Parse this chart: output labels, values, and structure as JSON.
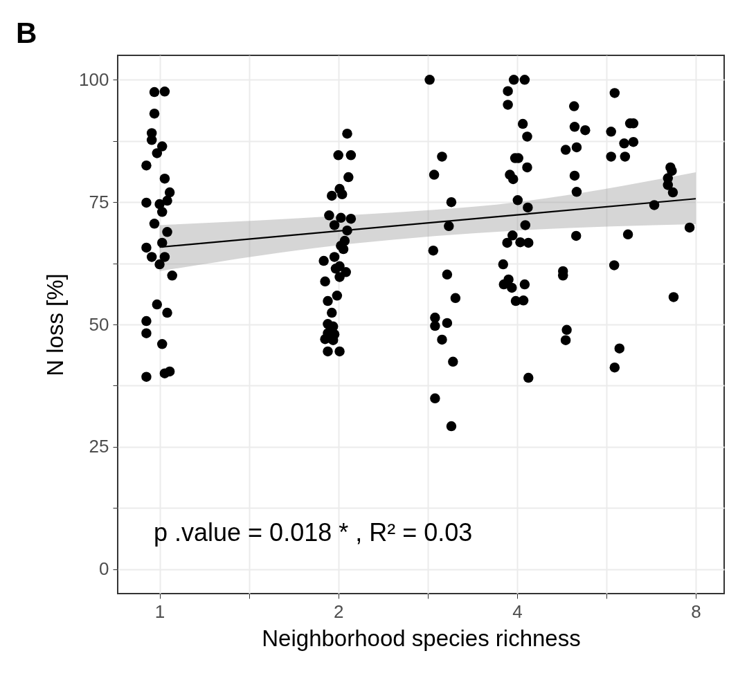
{
  "chart_data": {
    "type": "scatter",
    "title": "B",
    "xlabel": "Neighborhood species richness",
    "ylabel": "N loss [%]",
    "log": "x",
    "xlim": [
      0.85,
      8.93
    ],
    "ylim": [
      -5,
      105
    ],
    "xticks": [
      1,
      {
        "value": 1.414,
        "label": null
      },
      2,
      {
        "value": 2.828,
        "label": null
      },
      4,
      {
        "value": 5.657,
        "label": null
      },
      8
    ],
    "yticks": [
      0,
      {
        "value": 12.5,
        "label": null
      },
      25,
      {
        "value": 37.5,
        "label": null
      },
      50,
      {
        "value": 62.5,
        "label": null
      },
      75,
      {
        "value": 87.5,
        "label": null
      },
      100
    ],
    "grid": true,
    "annotations": [
      "p .value  = 0.018 * , R² = 0.03"
    ],
    "series": [
      {
        "marker": "circle",
        "color": "#000000",
        "x": [
          0.98,
          1.02,
          0.98,
          0.97,
          0.97,
          1.01,
          0.99,
          0.95,
          1.02,
          1.04,
          0.95,
          1.03,
          1.0,
          1.01,
          0.98,
          1.03,
          1.01,
          0.95,
          0.97,
          1.02,
          1.0,
          1.05,
          0.99,
          1.03,
          0.95,
          0.95,
          1.01,
          0.95,
          1.02,
          1.04,
          2.07,
          2.0,
          2.1,
          2.08,
          2.01,
          2.03,
          1.95,
          1.93,
          2.02,
          2.1,
          1.97,
          2.07,
          2.05,
          2.02,
          2.04,
          1.97,
          1.89,
          2.01,
          1.98,
          2.06,
          2.01,
          1.9,
          1.99,
          1.92,
          1.95,
          1.92,
          1.96,
          1.92,
          1.97,
          1.9,
          1.96,
          1.92,
          2.01,
          2.85,
          2.99,
          2.9,
          3.1,
          3.07,
          2.89,
          3.05,
          3.15,
          2.91,
          2.91,
          3.05,
          2.99,
          3.12,
          2.91,
          3.1,
          3.95,
          4.12,
          3.86,
          3.86,
          4.09,
          4.16,
          3.97,
          4.02,
          4.16,
          3.89,
          3.94,
          4.01,
          4.17,
          4.13,
          3.93,
          3.85,
          4.05,
          4.18,
          3.79,
          3.87,
          3.8,
          3.92,
          4.12,
          3.98,
          4.1,
          4.18,
          4.99,
          5.0,
          5.21,
          4.83,
          5.04,
          5.0,
          5.04,
          5.03,
          4.78,
          4.78,
          4.85,
          4.83,
          5.84,
          5.76,
          6.2,
          6.28,
          6.06,
          6.28,
          5.76,
          6.08,
          6.15,
          5.83,
          5.95,
          5.84,
          7.25,
          7.29,
          7.18,
          7.18,
          7.32,
          6.81,
          7.81,
          7.34
        ],
        "values": [
          97.5,
          97.6,
          93.1,
          89.1,
          87.7,
          86.4,
          85.0,
          82.5,
          79.8,
          77.0,
          74.9,
          75.3,
          74.6,
          73.0,
          70.6,
          68.9,
          66.7,
          65.7,
          63.8,
          63.8,
          62.3,
          60.0,
          54.1,
          52.4,
          50.7,
          48.2,
          46.0,
          39.3,
          40.0,
          40.4,
          89.0,
          84.6,
          84.6,
          80.1,
          77.7,
          76.6,
          76.3,
          72.3,
          71.8,
          71.6,
          70.3,
          69.2,
          67.1,
          66.1,
          65.4,
          63.8,
          63.0,
          61.9,
          61.4,
          60.7,
          59.7,
          58.8,
          55.9,
          54.8,
          52.4,
          50.1,
          49.6,
          48.2,
          48.0,
          47.0,
          46.8,
          44.5,
          44.5,
          100.0,
          84.3,
          80.6,
          75.0,
          70.1,
          65.1,
          60.2,
          55.4,
          51.4,
          49.7,
          50.3,
          46.9,
          42.4,
          34.9,
          29.2,
          100.0,
          100.0,
          97.7,
          94.9,
          91.0,
          88.4,
          84.0,
          84.0,
          82.1,
          80.6,
          79.7,
          75.4,
          73.9,
          70.3,
          68.2,
          66.7,
          66.8,
          66.7,
          62.3,
          59.2,
          58.2,
          57.5,
          58.2,
          54.8,
          54.9,
          39.1,
          94.6,
          90.4,
          89.7,
          85.7,
          86.2,
          80.4,
          77.1,
          68.1,
          60.9,
          60.0,
          48.9,
          46.8,
          97.3,
          89.4,
          91.1,
          91.1,
          87.0,
          87.3,
          84.3,
          84.3,
          68.4,
          62.1,
          45.1,
          41.2,
          82.1,
          81.4,
          79.9,
          78.5,
          77.0,
          74.4,
          69.8,
          55.6
        ]
      },
      {
        "type": "line",
        "color": "#000000",
        "x": [
          1,
          2,
          4,
          8
        ],
        "values": [
          65.8,
          69.1,
          72.4,
          75.7
        ],
        "lower": [
          60.9,
          66.2,
          69.2,
          70.5
        ],
        "upper": [
          70.3,
          72.2,
          75.0,
          81.1
        ]
      }
    ]
  }
}
